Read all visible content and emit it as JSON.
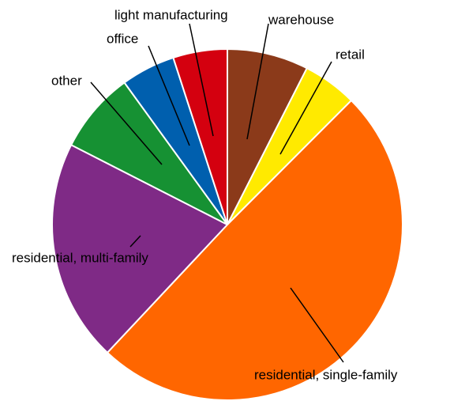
{
  "chart_data": {
    "type": "pie",
    "categories": [
      "warehouse",
      "retail",
      "residential,  single-family",
      "residential,  multi-family",
      "other",
      "office",
      "light manufacturing"
    ],
    "values": [
      7.5,
      5,
      49.5,
      20.5,
      7.5,
      5,
      5
    ],
    "colors": [
      "#8b3a1a",
      "#ffea00",
      "#ff6600",
      "#7f2a86",
      "#169133",
      "#005fae",
      "#d4000f"
    ]
  }
}
